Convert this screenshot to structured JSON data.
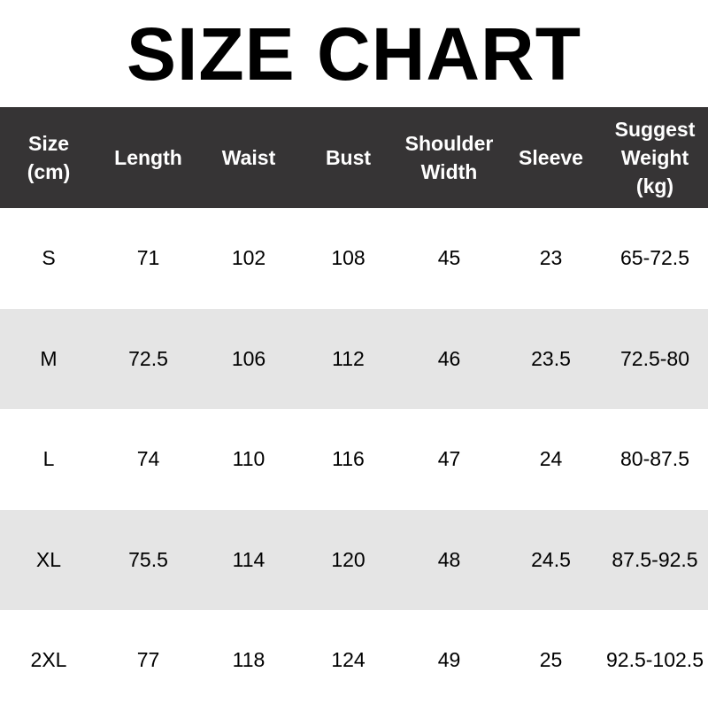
{
  "title": "SIZE CHART",
  "colors": {
    "header_bg": "#363435",
    "header_text": "#ffffff",
    "alt_row": "#e5e5e5"
  },
  "headers": [
    "Size\n(cm)",
    "Length",
    "Waist",
    "Bust",
    "Shoulder\nWidth",
    "Sleeve",
    "Suggest\nWeight\n(kg)"
  ],
  "rows": [
    [
      "S",
      "71",
      "102",
      "108",
      "45",
      "23",
      "65-72.5"
    ],
    [
      "M",
      "72.5",
      "106",
      "112",
      "46",
      "23.5",
      "72.5-80"
    ],
    [
      "L",
      "74",
      "110",
      "116",
      "47",
      "24",
      "80-87.5"
    ],
    [
      "XL",
      "75.5",
      "114",
      "120",
      "48",
      "24.5",
      "87.5-92.5"
    ],
    [
      "2XL",
      "77",
      "118",
      "124",
      "49",
      "25",
      "92.5-102.5"
    ]
  ]
}
